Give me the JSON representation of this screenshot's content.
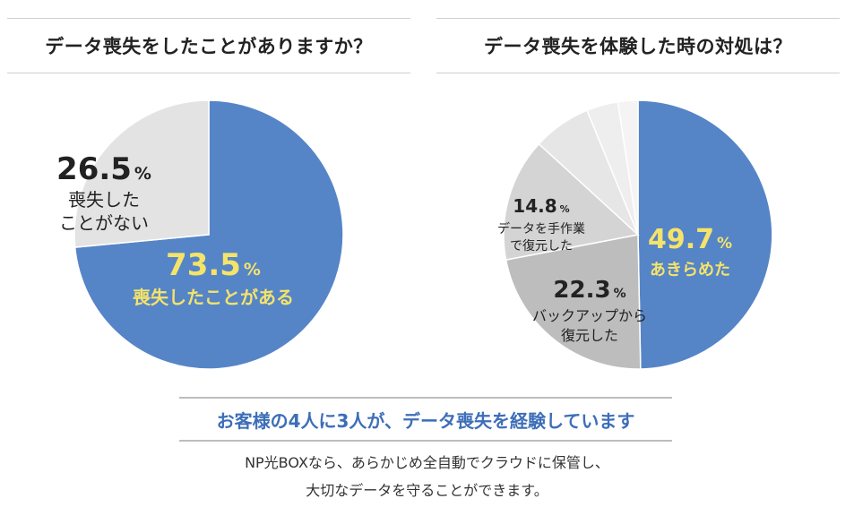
{
  "charts": {
    "left": {
      "title": "データ喪失をしたことがありますか？",
      "percent_unit": "%"
    },
    "right": {
      "title": "データ喪失を体験した時の対処は？",
      "percent_unit": "%"
    }
  },
  "chart_data": [
    {
      "type": "pie",
      "title": "データ喪失をしたことがありますか？",
      "slices": [
        {
          "name_lines": [
            "喪失したことがある"
          ],
          "label": "73.5",
          "value": 73.5,
          "color": "#5585c7"
        },
        {
          "name_lines": [
            "喪失した",
            "ことがない"
          ],
          "label": "26.5",
          "value": 26.5,
          "color": "#e3e3e3"
        }
      ]
    },
    {
      "type": "pie",
      "title": "データ喪失を体験した時の対処は？",
      "slices": [
        {
          "name_lines": [
            "あきらめた"
          ],
          "label": "49.7",
          "value": 49.7,
          "color": "#5585c7"
        },
        {
          "name_lines": [
            "バックアップから",
            "復元した"
          ],
          "label": "22.3",
          "value": 22.3,
          "color": "#bdbdbd"
        },
        {
          "name_lines": [
            "データを手作業",
            "で復元した"
          ],
          "label": "14.8",
          "value": 14.8,
          "color": "#d4d4d4"
        },
        {
          "name_lines": [],
          "label": "",
          "value": 7.0,
          "color": "#e6e6e6"
        },
        {
          "name_lines": [],
          "label": "",
          "value": 3.8,
          "color": "#eeeeee"
        },
        {
          "name_lines": [],
          "label": "",
          "value": 2.4,
          "color": "#f4f4f4"
        }
      ]
    }
  ],
  "callout": "お客様の4人に3人が、データ喪失を経験しています",
  "note_lines": [
    "NP光BOXなら、あらかじめ全自動でクラウドに保管し、",
    "大切なデータを守ることができます。"
  ]
}
